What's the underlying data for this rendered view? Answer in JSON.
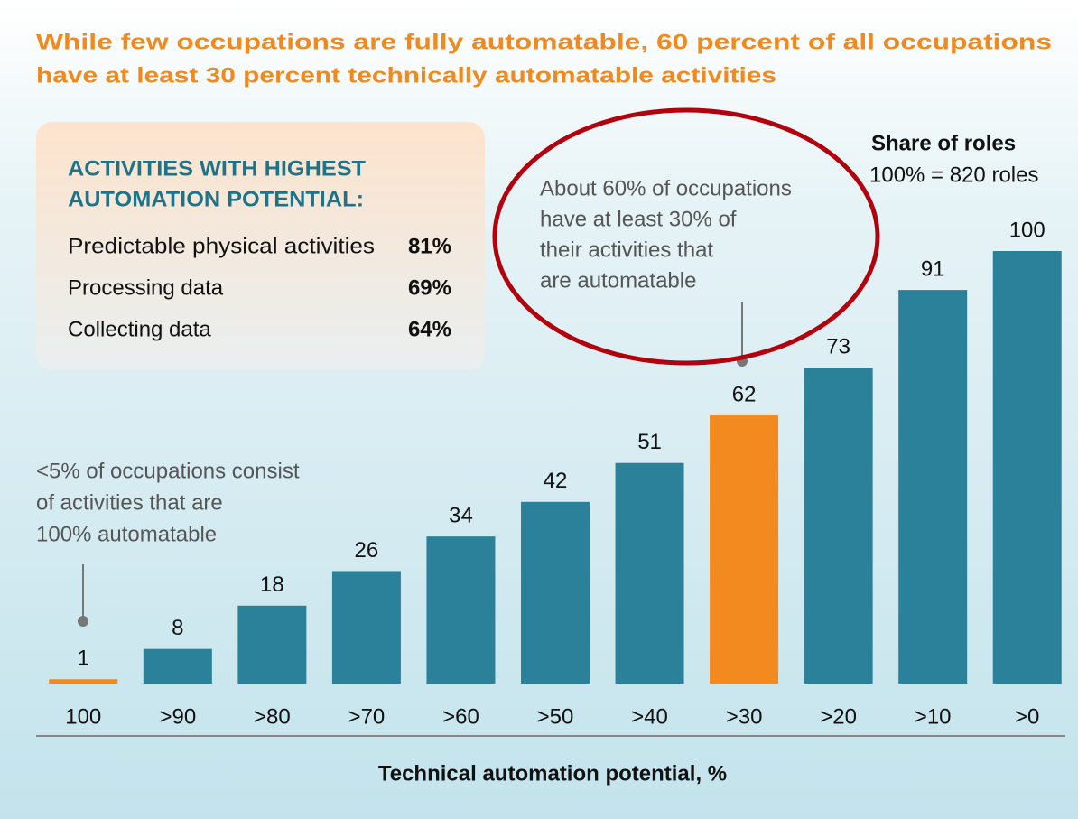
{
  "chart_data": {
    "type": "bar",
    "title": [
      "While few occupations are fully automatable, 60 percent of all occupations",
      "have at least 30 percent technically automatable activities"
    ],
    "categories": [
      "100",
      ">90",
      ">80",
      ">70",
      ">60",
      ">50",
      ">40",
      ">30",
      ">20",
      ">10",
      ">0"
    ],
    "values": [
      1,
      8,
      18,
      26,
      34,
      42,
      51,
      62,
      73,
      91,
      100
    ],
    "colors": [
      "#f28a1f",
      "#2a8199",
      "#2a8199",
      "#2a8199",
      "#2a8199",
      "#2a8199",
      "#2a8199",
      "#f28a1f",
      "#2a8199",
      "#2a8199",
      "#2a8199"
    ],
    "ylim": [
      0,
      100
    ],
    "x_label": "Technical automation potential, %",
    "legend_title": "Share of roles",
    "legend_note": "100% = 820 roles",
    "annotations": [
      {
        "lines": [
          "<5% of occupations consist",
          "of activities that are",
          "100% automatable"
        ]
      },
      {
        "lines": [
          "About 60% of occupations",
          "have at least 30% of",
          "their activities that",
          "are automatable"
        ]
      }
    ],
    "activities": {
      "title": [
        "ACTIVITIES WITH HIGHEST",
        "AUTOMATION POTENTIAL:"
      ],
      "items": [
        {
          "label": "Predictable physical activities",
          "value": "81%"
        },
        {
          "label": "Processing data",
          "value": "69%"
        },
        {
          "label": "Collecting data",
          "value": "64%"
        }
      ]
    }
  }
}
